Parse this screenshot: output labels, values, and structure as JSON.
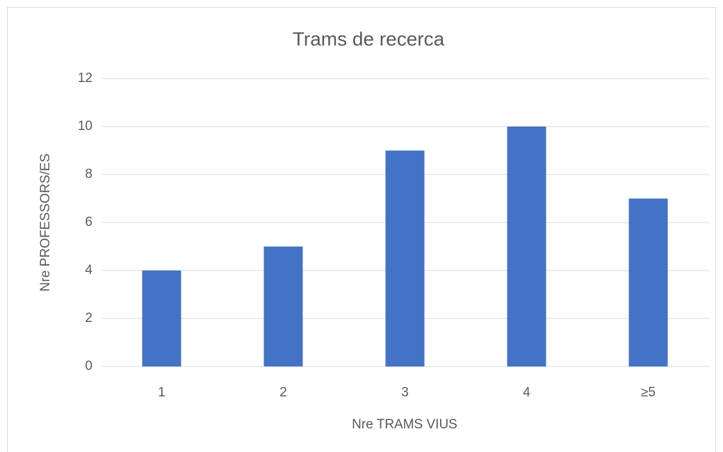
{
  "chart_data": {
    "type": "bar",
    "title": "Trams de recerca",
    "categories": [
      "1",
      "2",
      "3",
      "4",
      "≥5"
    ],
    "values": [
      4,
      5,
      9,
      10,
      7
    ],
    "color": "#4472c4",
    "xlabel": "Nre TRAMS VIUS",
    "ylabel": "Nre PROFESSORS/ES",
    "ylim": [
      0,
      12
    ],
    "yticks": [
      0,
      2,
      4,
      6,
      8,
      10,
      12
    ],
    "grid": true
  }
}
